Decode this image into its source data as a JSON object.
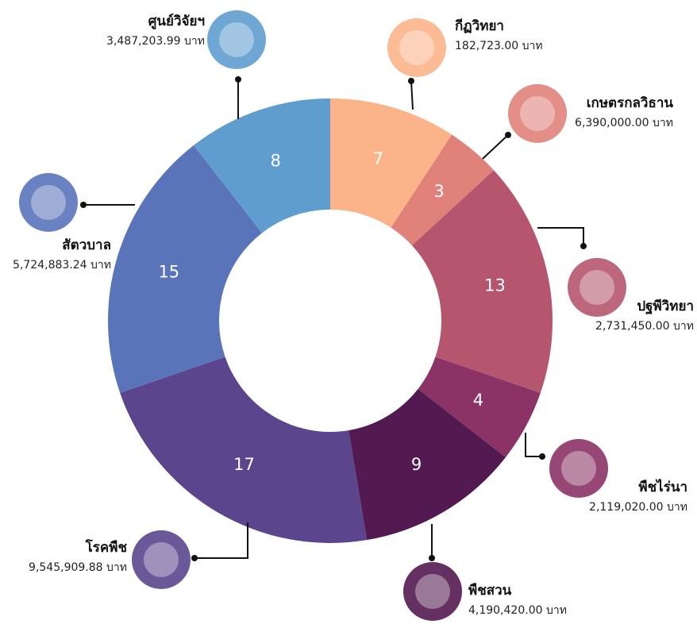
{
  "chart_data": {
    "type": "donut",
    "categories": [
      "กีฏวิทยา",
      "เกษตรกลวิธาน",
      "ปฐพีวิทยา",
      "พืชไร่นา",
      "พืชสวน",
      "โรคพืช",
      "สัตวบาล",
      "ศูนย์วิจัยฯ"
    ],
    "values": [
      7,
      3,
      13,
      4,
      9,
      17,
      15,
      8
    ],
    "amounts": [
      "182,723.00 บาท",
      "6,390,000.00 บาท",
      "2,731,450.00 บาท",
      "2,119,020.00 บาท",
      "4,190,420.00 บาท",
      "9,545,909.88 บาท",
      "5,724,883.24 บาท",
      "3,487,203.99 บาท"
    ],
    "colors": [
      "#fbb48a",
      "#e0827a",
      "#b5566e",
      "#8b3367",
      "#531a51",
      "#5b468d",
      "#5a74ba",
      "#5f9dcf"
    ]
  }
}
